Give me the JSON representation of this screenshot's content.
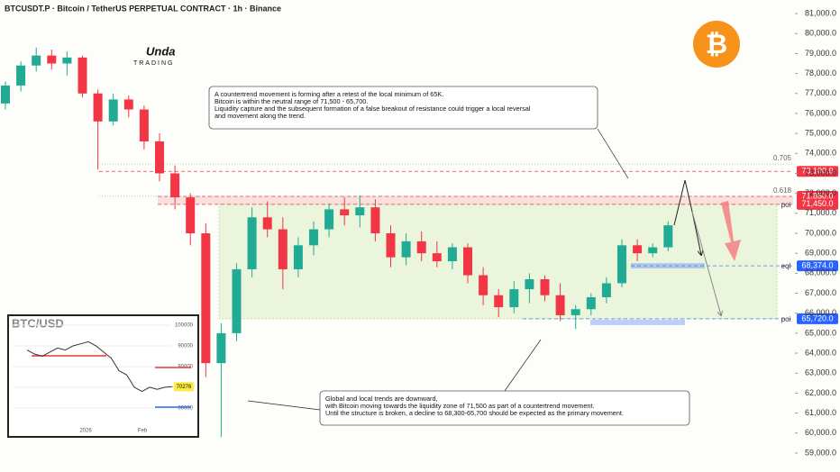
{
  "header": "BTCUSDT.P · Bitcoin / TetherUS PERPETUAL CONTRACT · 1h · Binance",
  "logo": {
    "name": "Unda",
    "sub": "TRADING"
  },
  "icon": "₿",
  "chart_data": {
    "type": "candlestick",
    "open": [
      76500,
      77400,
      78400,
      78900,
      78500,
      78800,
      77000,
      75600,
      76700,
      76200,
      74600,
      73000,
      71800,
      70000,
      63500,
      65000,
      68200,
      70800,
      70200,
      68200,
      69400,
      70200,
      71200,
      70900,
      71300,
      70000,
      68800,
      69600,
      69000,
      68600,
      69300,
      67900,
      66900,
      66300,
      67200,
      67700,
      66900,
      65900,
      66200,
      66800,
      67500,
      69400,
      69000,
      69300
    ],
    "high": [
      77600,
      78600,
      79300,
      79200,
      79100,
      78900,
      77200,
      77000,
      76900,
      76400,
      75000,
      73400,
      72000,
      70500,
      65500,
      68500,
      71300,
      71600,
      70800,
      69800,
      70600,
      71500,
      71800,
      71900,
      71700,
      70400,
      70000,
      70100,
      69600,
      69500,
      69500,
      68300,
      67200,
      67600,
      68000,
      67900,
      67500,
      66400,
      67000,
      67800,
      69700,
      69700,
      69500,
      70600
    ],
    "low": [
      76200,
      77100,
      78100,
      78200,
      77900,
      76800,
      73200,
      75400,
      75800,
      74200,
      72600,
      71200,
      69400,
      62800,
      59800,
      64600,
      67800,
      69800,
      67200,
      67800,
      68900,
      69800,
      70400,
      70300,
      69600,
      68300,
      68400,
      68600,
      68300,
      68200,
      67500,
      66400,
      65800,
      66000,
      66500,
      66600,
      65600,
      65200,
      65900,
      66500,
      67300,
      68600,
      68800,
      69100
    ],
    "close": [
      77400,
      78400,
      78900,
      78500,
      78800,
      77000,
      75600,
      76700,
      76200,
      74600,
      73000,
      71800,
      70000,
      63500,
      65000,
      68200,
      70800,
      70200,
      68200,
      69400,
      70200,
      71200,
      70900,
      71300,
      70000,
      68800,
      69600,
      69000,
      68600,
      69300,
      67900,
      66900,
      66300,
      67200,
      67700,
      66900,
      65900,
      66200,
      66800,
      67500,
      69400,
      69000,
      69300,
      70400
    ],
    "up_color": "#22ab94",
    "down_color": "#f23645",
    "ylim": [
      58050,
      81680
    ],
    "yticks": [
      {
        "value": 81000,
        "label": "81,000.0"
      },
      {
        "value": 80000,
        "label": "80,000.0"
      },
      {
        "value": 79000,
        "label": "79,000.0"
      },
      {
        "value": 78000,
        "label": "78,000.0"
      },
      {
        "value": 77000,
        "label": "77,000.0"
      },
      {
        "value": 76000,
        "label": "76,000.0"
      },
      {
        "value": 75000,
        "label": "75,000.0"
      },
      {
        "value": 74000,
        "label": "74,000.0"
      },
      {
        "value": 73000,
        "label": "73,000.0"
      },
      {
        "value": 72000,
        "label": "72,000.0"
      },
      {
        "value": 71000,
        "label": "71,000.0"
      },
      {
        "value": 70000,
        "label": "70,000.0"
      },
      {
        "value": 69000,
        "label": "69,000.0"
      },
      {
        "value": 68000,
        "label": "68,000.0"
      },
      {
        "value": 67000,
        "label": "67,000.0"
      },
      {
        "value": 66000,
        "label": "66,000.0"
      },
      {
        "value": 65000,
        "label": "65,000.0"
      },
      {
        "value": 64000,
        "label": "64,000.0"
      },
      {
        "value": 63000,
        "label": "63,000.0"
      },
      {
        "value": 62000,
        "label": "62,000.0"
      },
      {
        "value": 61000,
        "label": "61,000.0"
      },
      {
        "value": 60000,
        "label": "60,000.0"
      },
      {
        "value": 59000,
        "label": "59,000.0"
      }
    ],
    "levels": [
      {
        "value": 73100,
        "label": "73,100.0",
        "color": "#f23645"
      },
      {
        "value": 71850,
        "label": "71,850.0",
        "color": "#f23645"
      },
      {
        "value": 71450,
        "label": "71,450.0",
        "color": "#f23645",
        "tag": "poi"
      },
      {
        "value": 68374,
        "label": "68,374.0",
        "color": "#2962ff",
        "tag": "eql"
      },
      {
        "value": 65720,
        "label": "65,720.0",
        "color": "#2962ff",
        "tag": "poi"
      }
    ],
    "fib": [
      {
        "value": 73470,
        "label": "0.705"
      },
      {
        "value": 71850,
        "label": "0.618"
      }
    ],
    "annotations": [
      {
        "lines": [
          "A countertrend movement is forming after a retest of the local minimum of 65K.",
          "Bitcoin is within the neutral range of 71,500 - 65,700.",
          "Liquidity capture and the subsequent formation of a false breakout of resistance could trigger a local reversal",
          "and movement along the trend."
        ]
      },
      {
        "lines": [
          "Global and local trends are downward,",
          "with Bitcoin moving towards the liquidity zone of 71,500 as part of a countertrend movement.",
          "Until the structure is broken, a decline to 68,300-65,700 should be expected as the primary movement."
        ]
      }
    ]
  },
  "inset": {
    "title": "BTC/USD",
    "ylim": [
      55000,
      102000
    ],
    "yticks": [
      100000,
      90000,
      80000,
      70000,
      60000
    ],
    "xlabels": [
      "2026",
      "Feb"
    ],
    "values": [
      88000,
      86000,
      85000,
      87000,
      89000,
      88000,
      90000,
      91000,
      92000,
      90000,
      87000,
      84000,
      78000,
      76000,
      70000,
      68000,
      70000,
      69000,
      70000,
      70276
    ],
    "color": "#333333"
  }
}
